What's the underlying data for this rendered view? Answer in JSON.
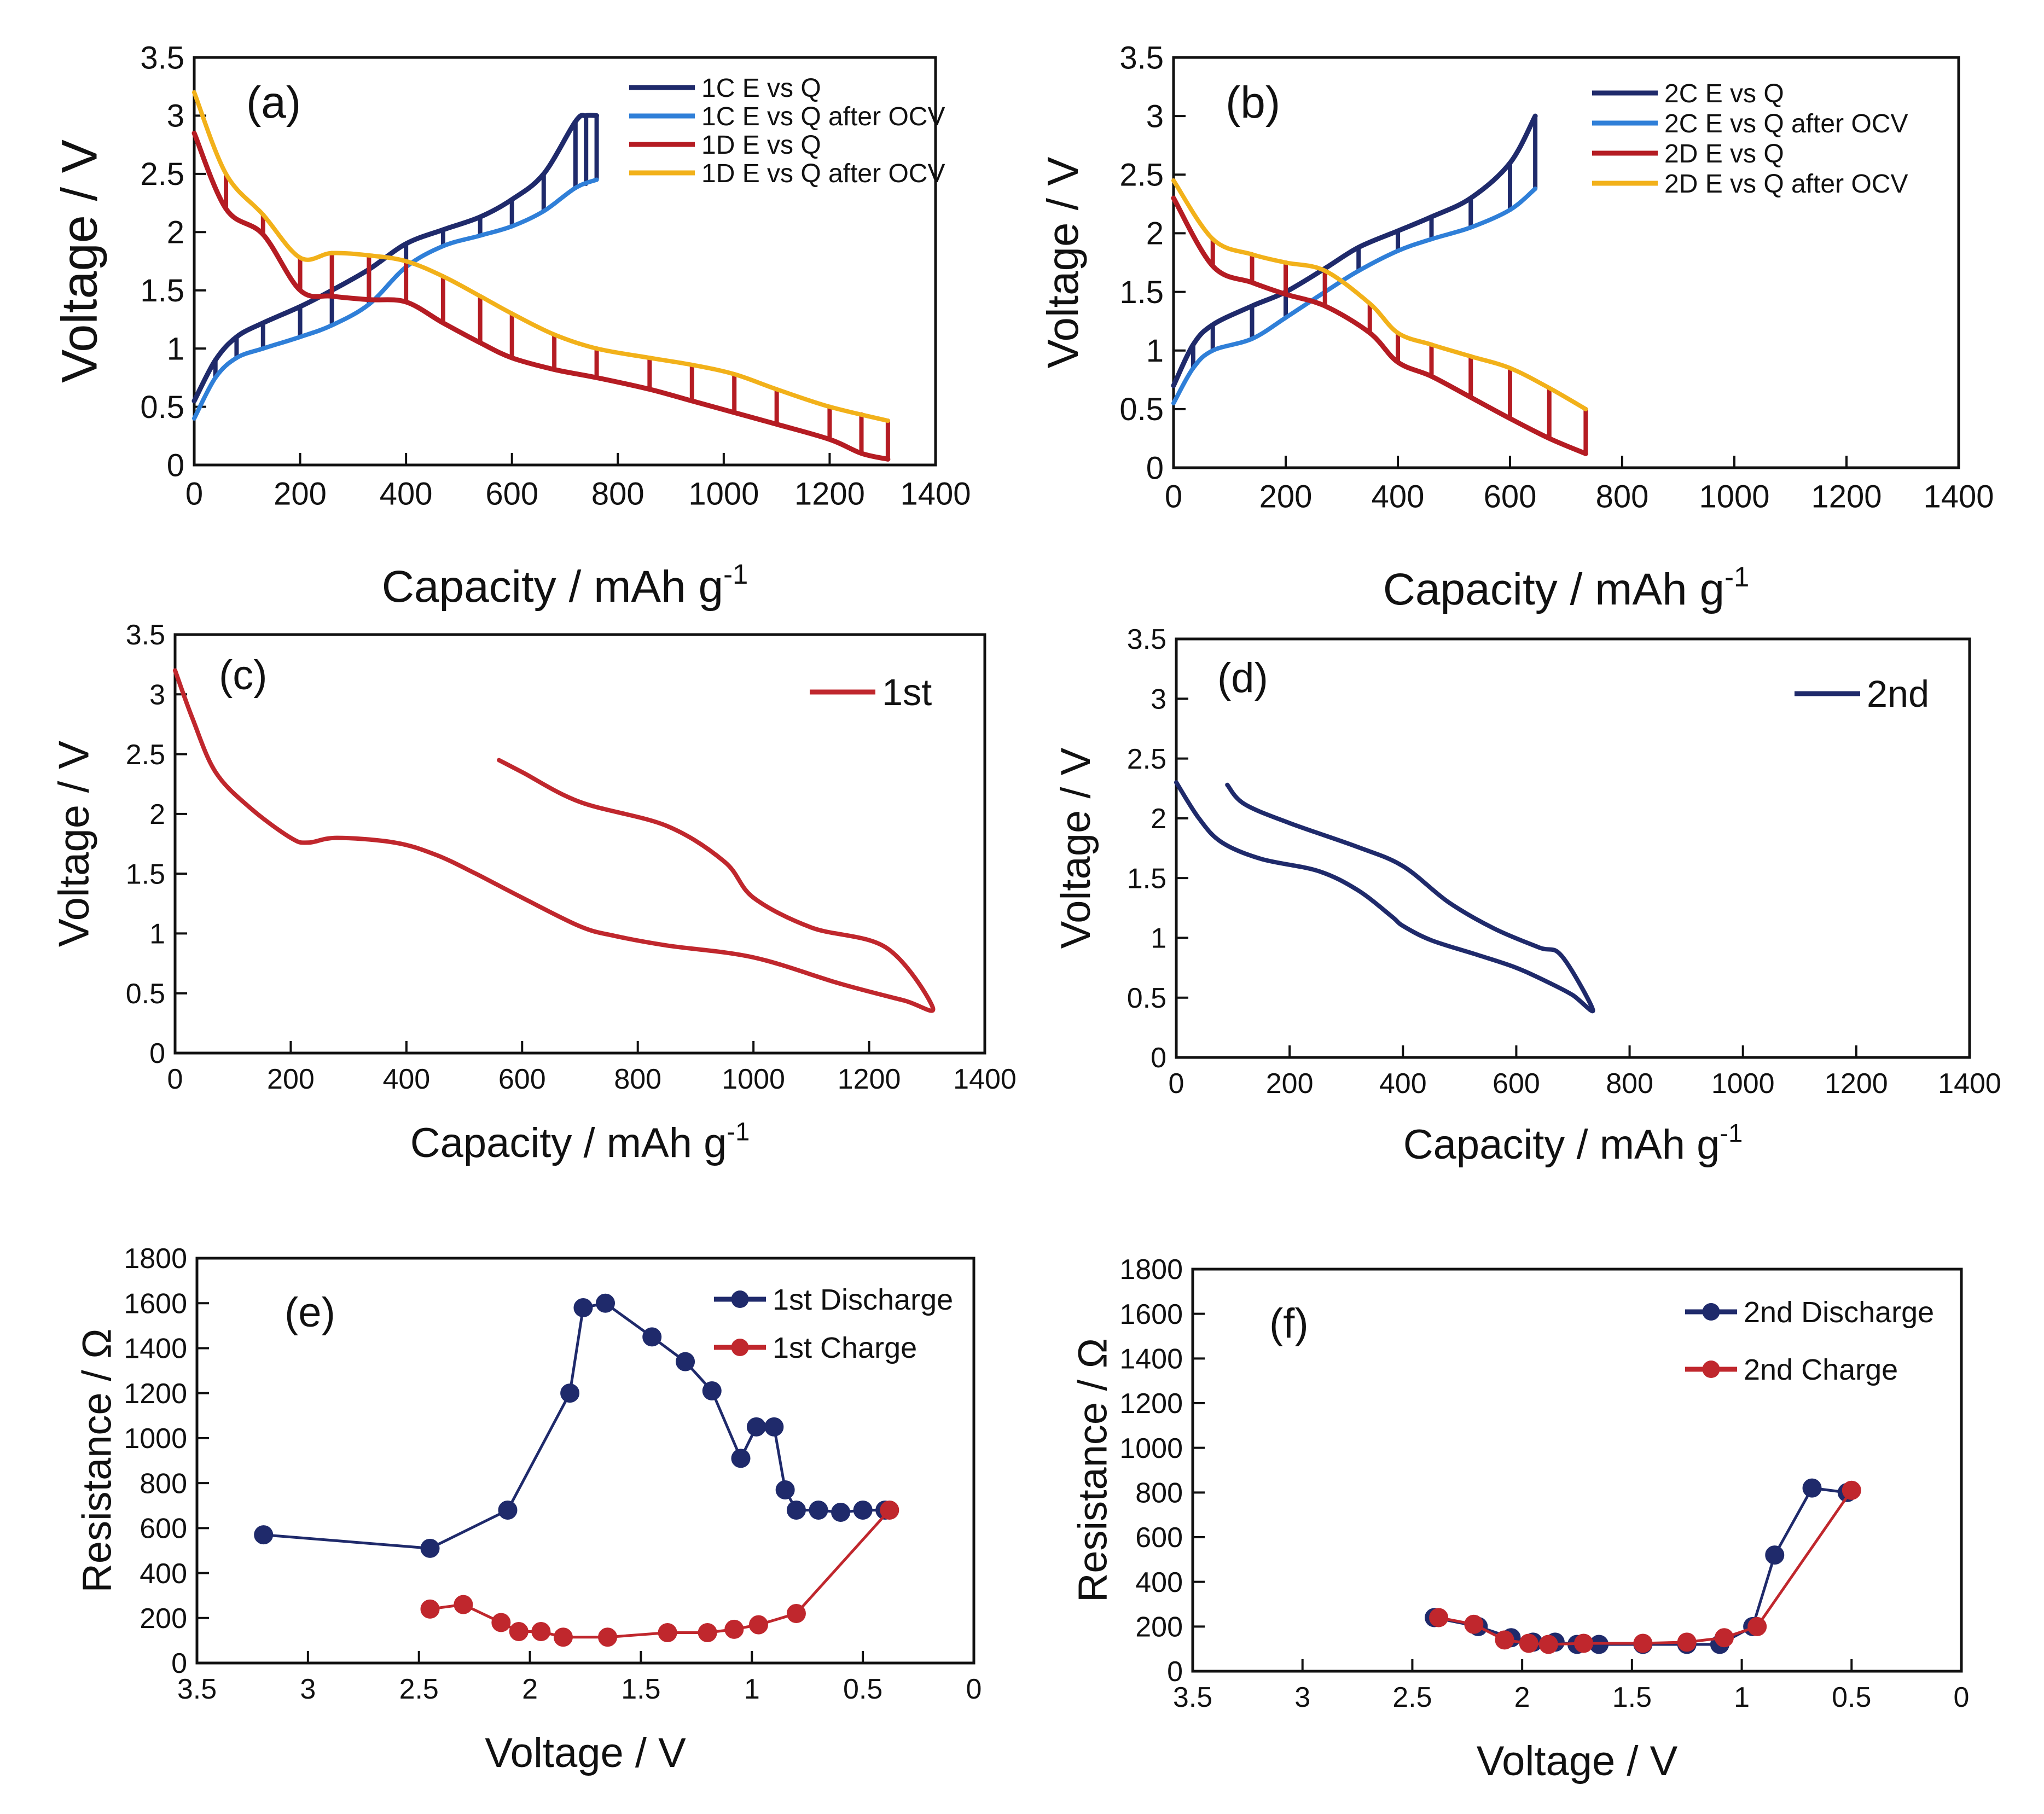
{
  "chart_data": [
    {
      "panel": "(a)",
      "type": "line",
      "xlabel": "Capacity / mAh g",
      "xlabel_sup": "-1",
      "ylabel": "Voltage / V",
      "xlim": [
        0,
        1400
      ],
      "ylim": [
        0,
        3.5
      ],
      "xticks": [
        "0",
        "200",
        "400",
        "600",
        "800",
        "1000",
        "1200",
        "1400"
      ],
      "yticks": [
        "0",
        "0.5",
        "1",
        "1.5",
        "2",
        "2.5",
        "3",
        "3.5"
      ],
      "legend_position": "top-right",
      "series": [
        {
          "name": "1C E vs Q",
          "color": "#1f2a6b",
          "style": "gitt",
          "relax_to": "1C E vs Q after OCV",
          "x": [
            0,
            40,
            80,
            130,
            200,
            260,
            330,
            400,
            470,
            540,
            600,
            660,
            720,
            740,
            760
          ],
          "y": [
            0.55,
            0.9,
            1.1,
            1.22,
            1.36,
            1.5,
            1.68,
            1.9,
            2.02,
            2.13,
            2.28,
            2.5,
            2.95,
            3.0,
            3.0
          ]
        },
        {
          "name": "1C E vs Q after OCV",
          "color": "#2f7fd8",
          "style": "line",
          "x": [
            0,
            40,
            80,
            130,
            200,
            260,
            330,
            400,
            470,
            540,
            600,
            660,
            720,
            760
          ],
          "y": [
            0.4,
            0.75,
            0.92,
            1.0,
            1.1,
            1.2,
            1.38,
            1.7,
            1.88,
            1.97,
            2.05,
            2.18,
            2.38,
            2.45
          ]
        },
        {
          "name": "1D E vs Q",
          "color": "#b51c23",
          "style": "gitt",
          "relax_to": "1D E vs Q after OCV",
          "x": [
            0,
            60,
            130,
            200,
            260,
            330,
            400,
            470,
            540,
            600,
            680,
            760,
            860,
            940,
            1020,
            1100,
            1200,
            1260,
            1310
          ],
          "y": [
            2.85,
            2.2,
            1.98,
            1.5,
            1.45,
            1.42,
            1.4,
            1.22,
            1.05,
            0.92,
            0.82,
            0.75,
            0.65,
            0.55,
            0.45,
            0.35,
            0.22,
            0.1,
            0.05
          ]
        },
        {
          "name": "1D E vs Q after OCV",
          "color": "#f2b11a",
          "style": "line",
          "x": [
            0,
            60,
            130,
            200,
            260,
            330,
            400,
            470,
            540,
            600,
            680,
            760,
            860,
            940,
            1020,
            1100,
            1200,
            1310
          ],
          "y": [
            3.2,
            2.5,
            2.15,
            1.78,
            1.82,
            1.8,
            1.75,
            1.62,
            1.45,
            1.3,
            1.12,
            1.0,
            0.92,
            0.86,
            0.78,
            0.65,
            0.5,
            0.38
          ]
        }
      ]
    },
    {
      "panel": "(b)",
      "type": "line",
      "xlabel": "Capacity / mAh g",
      "xlabel_sup": "-1",
      "ylabel": "Voltage / V",
      "xlim": [
        0,
        1400
      ],
      "ylim": [
        0,
        3.5
      ],
      "xticks": [
        "0",
        "200",
        "400",
        "600",
        "800",
        "1000",
        "1200",
        "1400"
      ],
      "yticks": [
        "0",
        "0.5",
        "1",
        "1.5",
        "2",
        "2.5",
        "3",
        "3.5"
      ],
      "legend_position": "top-right",
      "series": [
        {
          "name": "2C E vs Q",
          "color": "#1f2a6b",
          "style": "gitt",
          "relax_to": "2C E vs Q after OCV",
          "x": [
            0,
            35,
            70,
            140,
            200,
            270,
            330,
            400,
            460,
            530,
            600,
            645
          ],
          "y": [
            0.7,
            1.05,
            1.22,
            1.38,
            1.5,
            1.7,
            1.88,
            2.02,
            2.14,
            2.3,
            2.6,
            3.0
          ]
        },
        {
          "name": "2C E vs Q after OCV",
          "color": "#2f7fd8",
          "style": "line",
          "x": [
            0,
            35,
            70,
            140,
            200,
            270,
            330,
            400,
            460,
            530,
            600,
            645
          ],
          "y": [
            0.55,
            0.85,
            1.0,
            1.1,
            1.28,
            1.5,
            1.68,
            1.85,
            1.95,
            2.05,
            2.2,
            2.38
          ]
        },
        {
          "name": "2D E vs Q",
          "color": "#b51c23",
          "style": "gitt",
          "relax_to": "2D E vs Q after OCV",
          "x": [
            0,
            70,
            140,
            200,
            270,
            350,
            400,
            460,
            530,
            600,
            670,
            735
          ],
          "y": [
            2.3,
            1.72,
            1.58,
            1.48,
            1.38,
            1.15,
            0.9,
            0.78,
            0.6,
            0.42,
            0.25,
            0.12
          ]
        },
        {
          "name": "2D E vs Q after OCV",
          "color": "#f2b11a",
          "style": "line",
          "x": [
            0,
            70,
            140,
            200,
            270,
            350,
            400,
            460,
            530,
            600,
            670,
            735
          ],
          "y": [
            2.45,
            1.95,
            1.82,
            1.75,
            1.68,
            1.4,
            1.15,
            1.05,
            0.95,
            0.85,
            0.68,
            0.5
          ]
        }
      ]
    },
    {
      "panel": "(c)",
      "type": "line",
      "xlabel": "Capacity  / mAh g",
      "xlabel_sup": "-1",
      "ylabel": "Voltage  / V",
      "xlim": [
        0,
        1400
      ],
      "ylim": [
        0,
        3.5
      ],
      "xticks": [
        "0",
        "200",
        "400",
        "600",
        "800",
        "1000",
        "1200",
        "1400"
      ],
      "yticks": [
        "0",
        "0.5",
        "1",
        "1.5",
        "2",
        "2.5",
        "3",
        "3.5"
      ],
      "legend_position": "top-right",
      "series": [
        {
          "name": "1st",
          "color": "#c0272d",
          "style": "line",
          "x": [
            0,
            30,
            70,
            130,
            200,
            230,
            280,
            380,
            450,
            520,
            600,
            700,
            760,
            850,
            1000,
            1150,
            1260,
            1310,
            1230,
            1100,
            1000,
            950,
            850,
            700,
            600,
            560
          ],
          "y": [
            3.2,
            2.8,
            2.35,
            2.05,
            1.8,
            1.76,
            1.8,
            1.76,
            1.66,
            1.5,
            1.3,
            1.06,
            0.98,
            0.9,
            0.8,
            0.58,
            0.44,
            0.38,
            0.88,
            1.05,
            1.3,
            1.6,
            1.9,
            2.1,
            2.35,
            2.45
          ]
        }
      ]
    },
    {
      "panel": "(d)",
      "type": "line",
      "xlabel": "Capacity  / mAh g",
      "xlabel_sup": "-1",
      "ylabel": "Voltage / V",
      "xlim": [
        0,
        1400
      ],
      "ylim": [
        0,
        3.5
      ],
      "xticks": [
        "0",
        "200",
        "400",
        "600",
        "800",
        "1000",
        "1200",
        "1400"
      ],
      "yticks": [
        "0",
        "0.5",
        "1",
        "1.5",
        "2",
        "2.5",
        "3",
        "3.5"
      ],
      "legend_position": "top-right",
      "series": [
        {
          "name": "2nd",
          "color": "#1f2a6b",
          "style": "line",
          "x": [
            0,
            40,
            80,
            150,
            250,
            320,
            380,
            400,
            450,
            530,
            600,
            660,
            700,
            735,
            680,
            640,
            560,
            480,
            400,
            320,
            200,
            120,
            90
          ],
          "y": [
            2.3,
            2.0,
            1.8,
            1.66,
            1.56,
            1.4,
            1.18,
            1.1,
            0.98,
            0.86,
            0.75,
            0.62,
            0.52,
            0.4,
            0.85,
            0.92,
            1.08,
            1.3,
            1.6,
            1.76,
            1.96,
            2.12,
            2.28
          ]
        }
      ]
    },
    {
      "panel": "(e)",
      "type": "line",
      "xlabel": "Voltage / V",
      "ylabel": "Resistance / Ω",
      "xlim": [
        3.5,
        0
      ],
      "ylim": [
        0,
        1800
      ],
      "xticks": [
        "3.5",
        "3",
        "2.5",
        "2",
        "1.5",
        "1",
        "0.5",
        "0"
      ],
      "yticks": [
        "0",
        "200",
        "400",
        "600",
        "800",
        "1000",
        "1200",
        "1400",
        "1600",
        "1800"
      ],
      "legend_position": "top-right",
      "series": [
        {
          "name": "1st Discharge",
          "color": "#1f2a6b",
          "marker": "circle",
          "x": [
            3.2,
            2.45,
            2.1,
            1.82,
            1.76,
            1.66,
            1.45,
            1.3,
            1.18,
            1.05,
            0.98,
            0.9,
            0.85,
            0.8,
            0.7,
            0.6,
            0.5,
            0.4
          ],
          "y": [
            570,
            510,
            680,
            1200,
            1580,
            1600,
            1450,
            1340,
            1210,
            910,
            1050,
            1050,
            770,
            680,
            680,
            670,
            680,
            680
          ]
        },
        {
          "name": "1st Charge",
          "color": "#c0272d",
          "marker": "circle",
          "x": [
            2.45,
            2.3,
            2.13,
            2.05,
            1.95,
            1.85,
            1.65,
            1.38,
            1.2,
            1.08,
            0.97,
            0.8,
            0.38
          ],
          "y": [
            240,
            260,
            180,
            140,
            140,
            115,
            115,
            135,
            135,
            150,
            170,
            220,
            680
          ]
        }
      ]
    },
    {
      "panel": "(f)",
      "type": "line",
      "xlabel": "Voltage / V",
      "ylabel": "Resistance / Ω",
      "xlim": [
        3.5,
        0
      ],
      "ylim": [
        0,
        1800
      ],
      "xticks": [
        "3.5",
        "3",
        "2.5",
        "2",
        "1.5",
        "1",
        "0.5",
        "0"
      ],
      "yticks": [
        "0",
        "200",
        "400",
        "600",
        "800",
        "1000",
        "1200",
        "1400",
        "1600",
        "1800"
      ],
      "legend_position": "top-right",
      "series": [
        {
          "name": "2nd Discharge",
          "color": "#1f2a6b",
          "marker": "circle",
          "x": [
            2.4,
            2.2,
            2.05,
            1.95,
            1.85,
            1.75,
            1.65,
            1.45,
            1.25,
            1.1,
            0.95,
            0.85,
            0.68,
            0.52
          ],
          "y": [
            240,
            200,
            150,
            130,
            130,
            120,
            120,
            120,
            120,
            120,
            200,
            520,
            820,
            800
          ]
        },
        {
          "name": "2nd Charge",
          "color": "#c0272d",
          "marker": "circle",
          "x": [
            2.38,
            2.22,
            2.08,
            1.97,
            1.88,
            1.72,
            1.45,
            1.25,
            1.08,
            0.93,
            0.5
          ],
          "y": [
            240,
            210,
            140,
            125,
            120,
            125,
            125,
            130,
            150,
            200,
            810
          ]
        }
      ]
    }
  ]
}
